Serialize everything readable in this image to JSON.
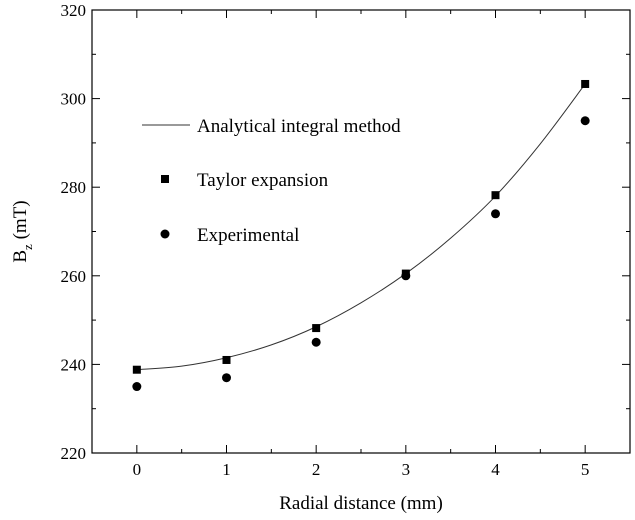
{
  "chart_data": {
    "type": "scatter",
    "title": "",
    "xlabel": "Radial distance (mm)",
    "ylabel_main": "B",
    "ylabel_sub": "z",
    "ylabel_unit": "(mT)",
    "xlim": [
      -0.5,
      5.5
    ],
    "ylim": [
      220,
      320
    ],
    "xticks": [
      0,
      1,
      2,
      3,
      4,
      5
    ],
    "yticks": [
      220,
      240,
      260,
      280,
      300,
      320
    ],
    "grid": false,
    "legend_position": "upper-left",
    "series": [
      {
        "name": "Analytical integral method",
        "kind": "line",
        "x": [
          0,
          0.5,
          1,
          1.5,
          2,
          2.5,
          3,
          3.5,
          4,
          4.5,
          5
        ],
        "y": [
          238.8,
          239.6,
          241.5,
          244.4,
          248.5,
          253.9,
          260.5,
          268.5,
          278.0,
          289.8,
          303.3
        ]
      },
      {
        "name": "Taylor expansion",
        "kind": "marker",
        "marker": "square",
        "x": [
          0,
          1,
          2,
          3,
          4,
          5
        ],
        "y": [
          238.8,
          241.0,
          248.2,
          260.5,
          278.2,
          303.3
        ]
      },
      {
        "name": "Experimental",
        "kind": "marker",
        "marker": "circle",
        "x": [
          0,
          1,
          2,
          3,
          4,
          5
        ],
        "y": [
          235,
          237,
          245,
          260,
          274,
          295
        ]
      }
    ],
    "colors": {
      "axis": "#000000",
      "line": "#333333",
      "marker": "#000000"
    }
  }
}
